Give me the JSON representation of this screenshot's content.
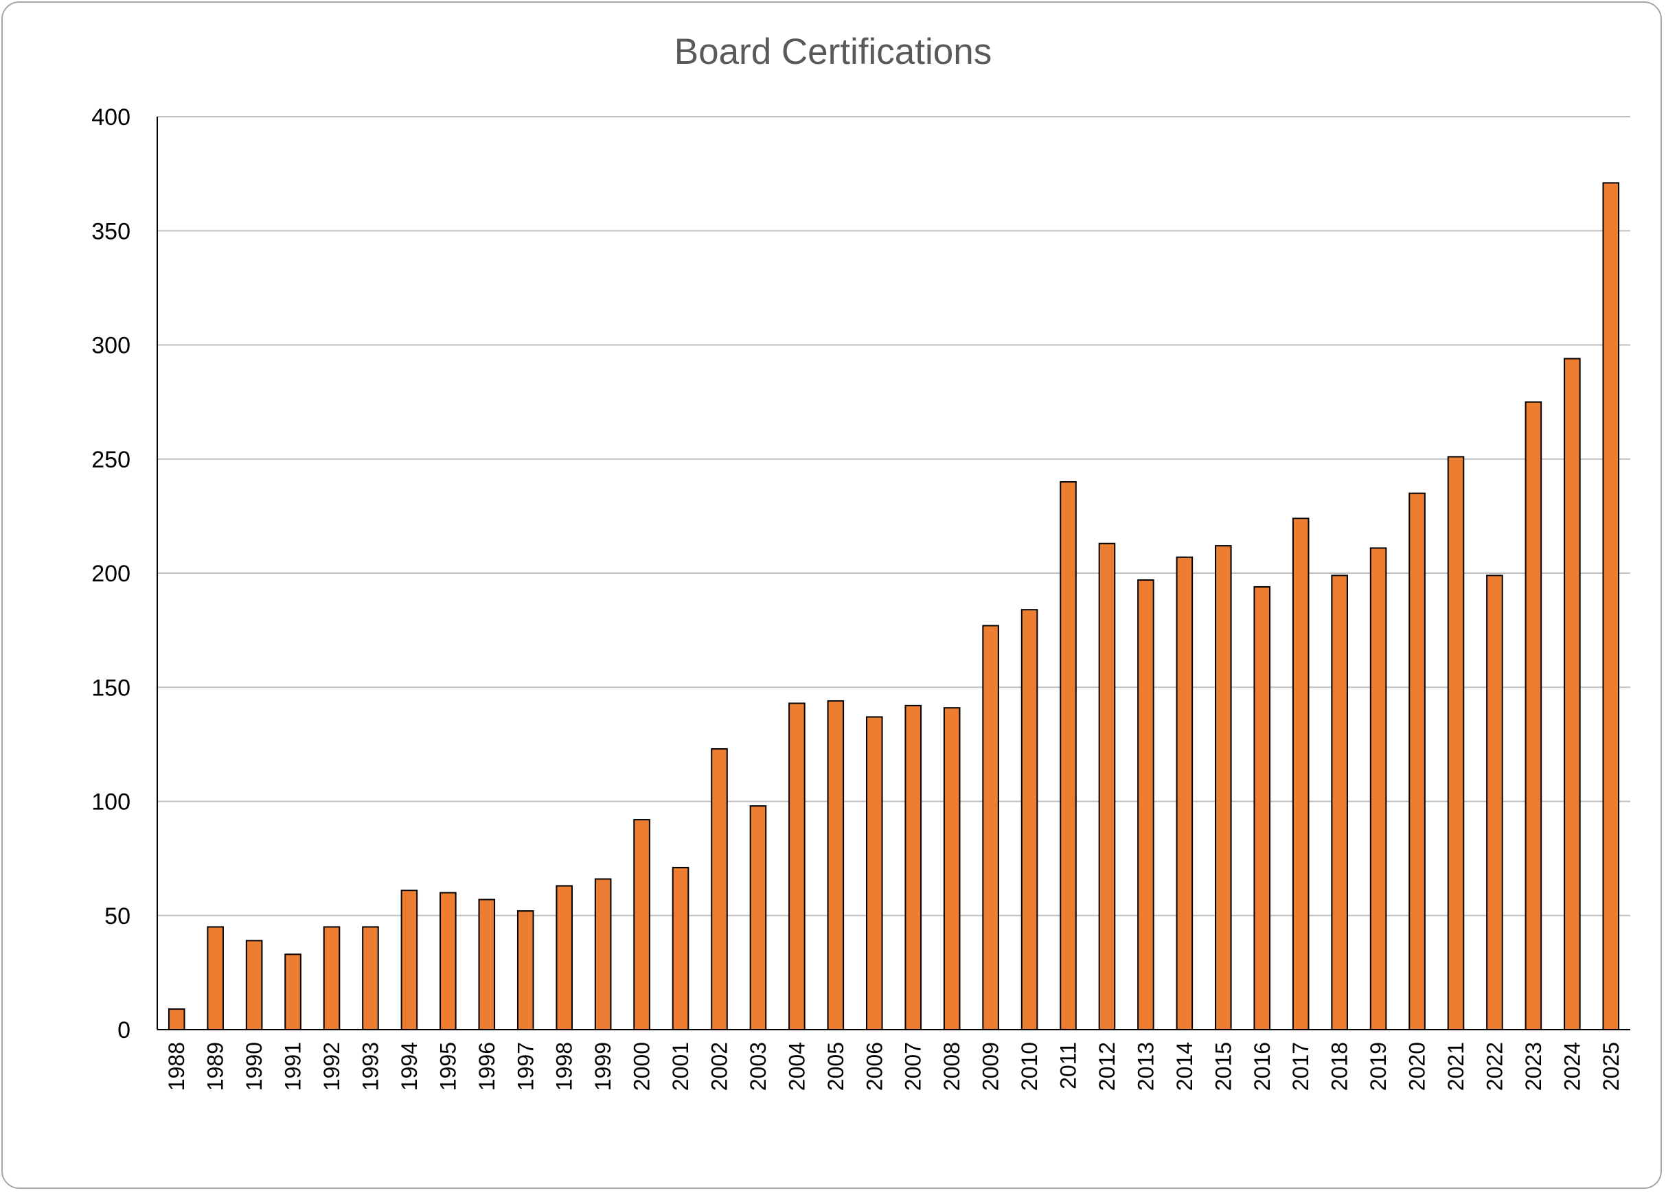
{
  "chart_data": {
    "type": "bar",
    "title": "Board Certifications",
    "xlabel": "",
    "ylabel": "",
    "ylim": [
      0,
      400
    ],
    "yticks": [
      0,
      50,
      100,
      150,
      200,
      250,
      300,
      350,
      400
    ],
    "grid": true,
    "legend": "none",
    "bar_color": "#ED7D31",
    "bar_outline": "#000000",
    "categories": [
      "1988",
      "1989",
      "1990",
      "1991",
      "1992",
      "1993",
      "1994",
      "1995",
      "1996",
      "1997",
      "1998",
      "1999",
      "2000",
      "2001",
      "2002",
      "2003",
      "2004",
      "2005",
      "2006",
      "2007",
      "2008",
      "2009",
      "2010",
      "2011",
      "2012",
      "2013",
      "2014",
      "2015",
      "2016",
      "2017",
      "2018",
      "2019",
      "2020",
      "2021",
      "2022",
      "2023",
      "2024",
      "2025"
    ],
    "values": [
      9,
      45,
      39,
      33,
      45,
      45,
      61,
      60,
      57,
      52,
      63,
      66,
      92,
      71,
      123,
      98,
      143,
      144,
      137,
      142,
      141,
      177,
      184,
      240,
      213,
      197,
      207,
      212,
      194,
      224,
      199,
      211,
      235,
      251,
      199,
      275,
      294,
      371
    ]
  }
}
